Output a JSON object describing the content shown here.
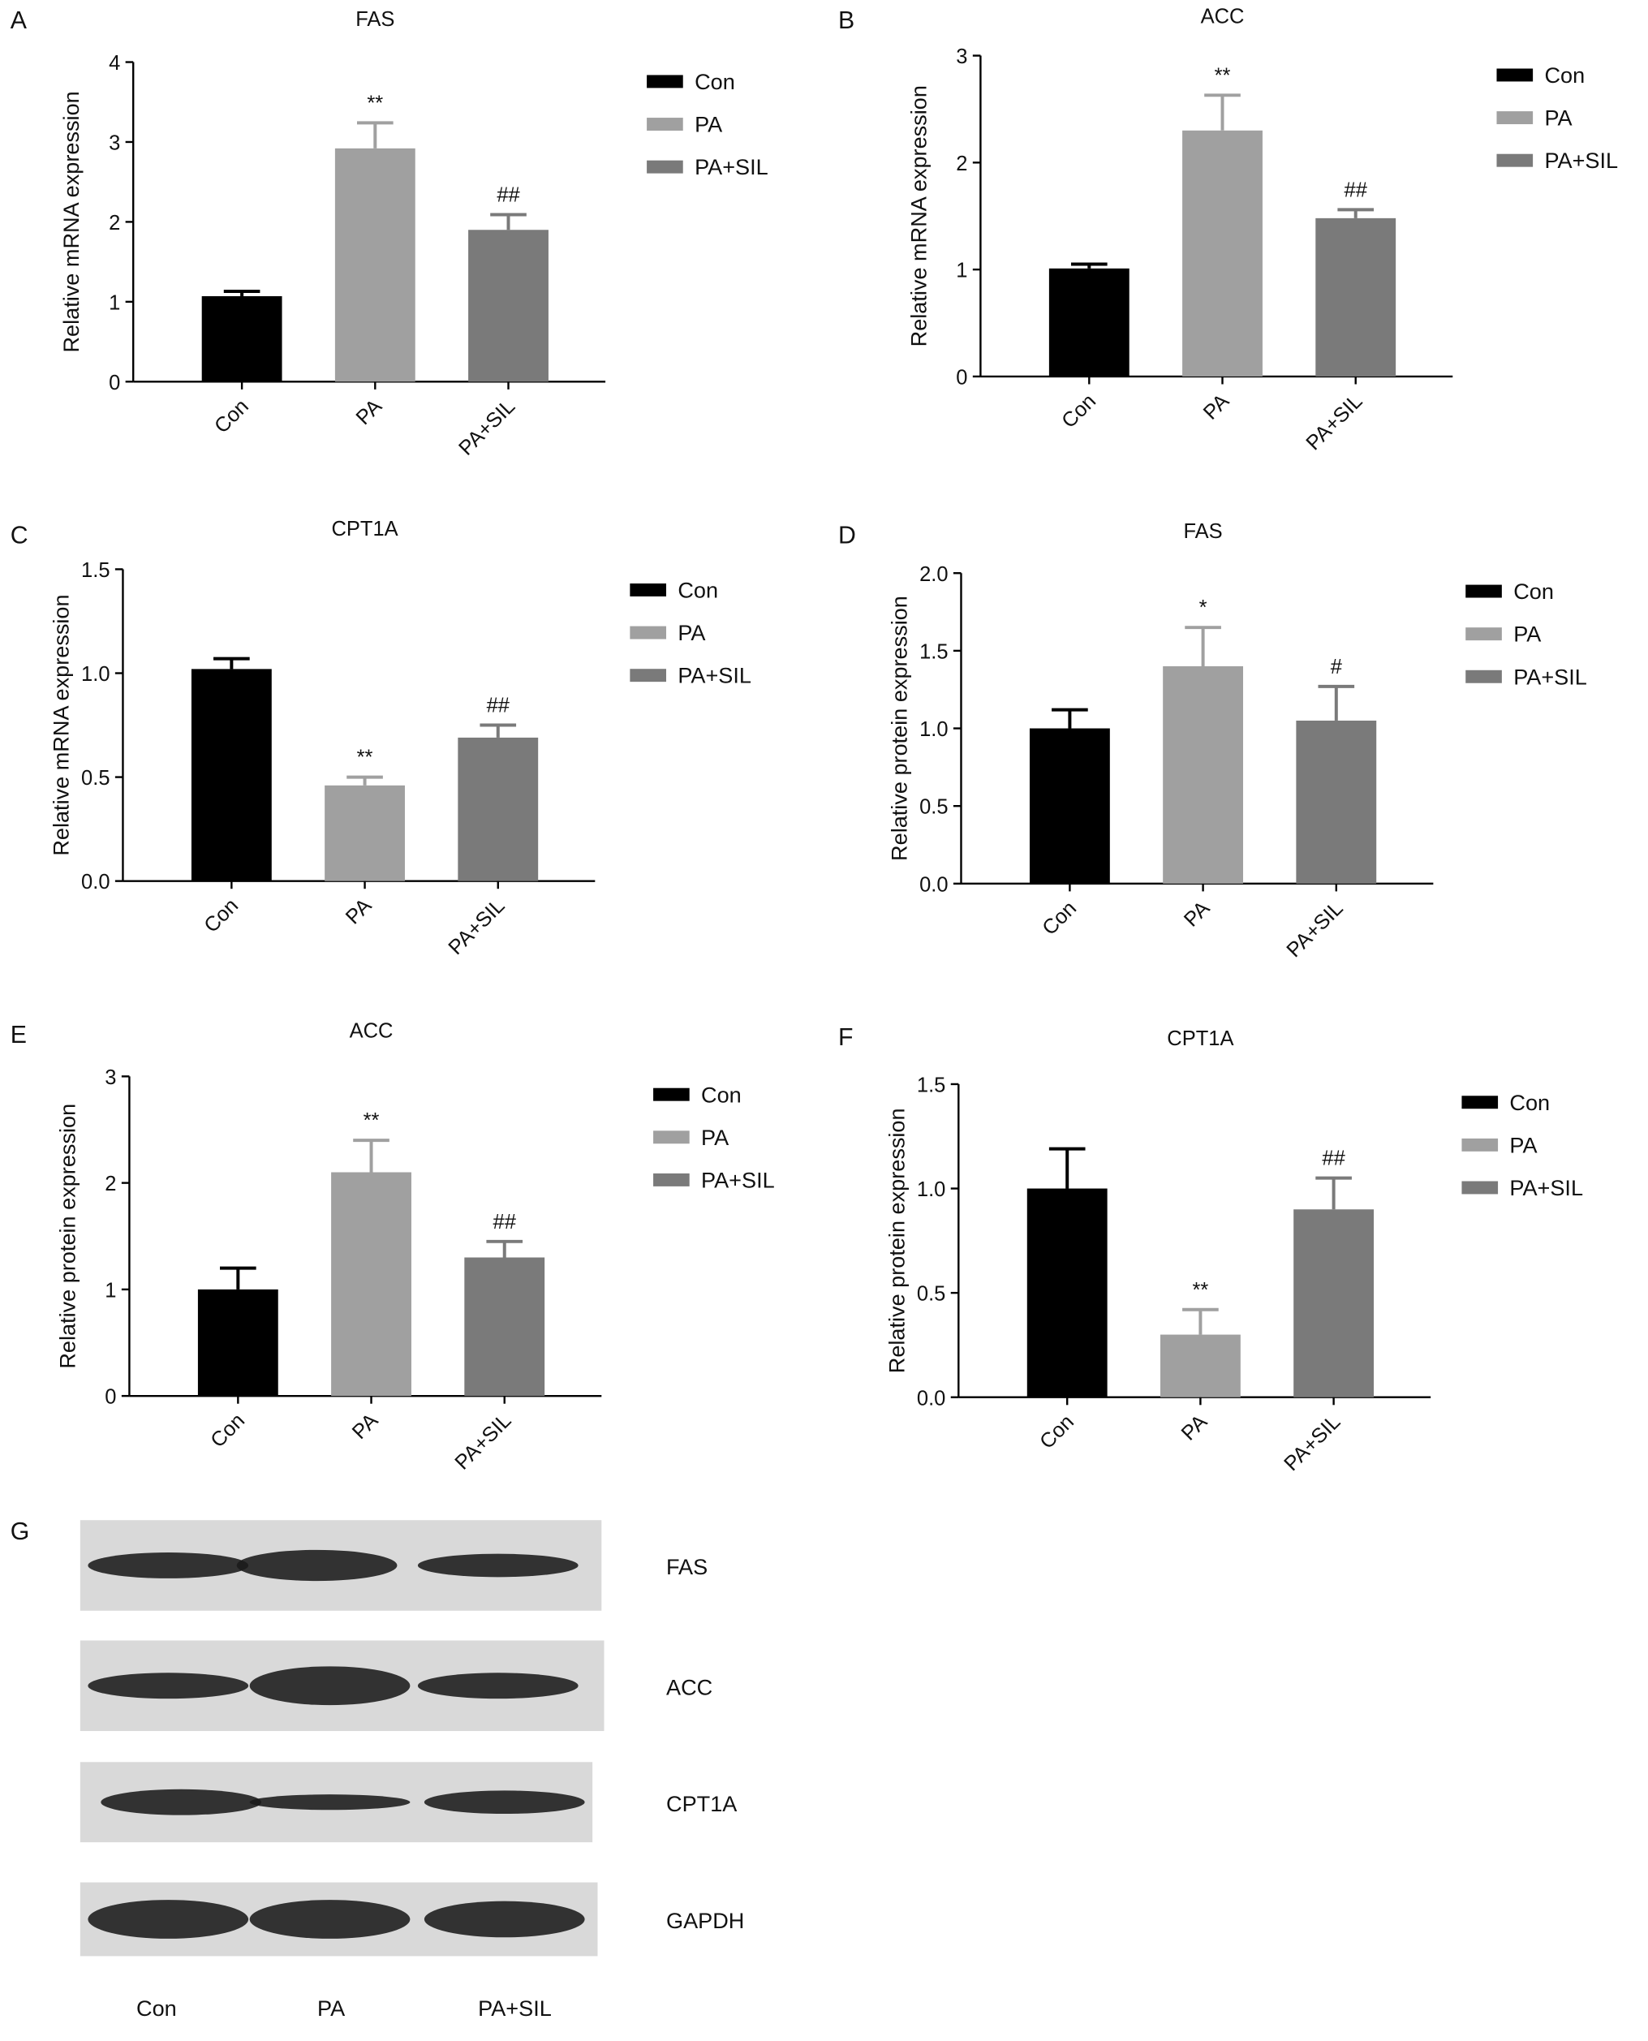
{
  "chart_data": [
    {
      "type": "bar",
      "panel": "A",
      "title": "FAS",
      "ylabel": "Relative mRNA expression",
      "categories": [
        "Con",
        "PA",
        "PA+SIL"
      ],
      "values": [
        1.07,
        2.92,
        1.9
      ],
      "errors": [
        0.06,
        0.32,
        0.19
      ],
      "annotations": [
        null,
        "**",
        "##"
      ],
      "colors": [
        "#000000",
        "#a0a0a0",
        "#7a7a7a"
      ],
      "ylim": [
        0,
        4
      ],
      "yticks": [
        0,
        1,
        2,
        3,
        4
      ]
    },
    {
      "type": "bar",
      "panel": "B",
      "title": "ACC",
      "ylabel": "Relative mRNA expression",
      "categories": [
        "Con",
        "PA",
        "PA+SIL"
      ],
      "values": [
        1.01,
        2.3,
        1.48
      ],
      "errors": [
        0.04,
        0.33,
        0.08
      ],
      "annotations": [
        null,
        "**",
        "##"
      ],
      "colors": [
        "#000000",
        "#a0a0a0",
        "#7a7a7a"
      ],
      "ylim": [
        0,
        3
      ],
      "yticks": [
        0,
        1,
        2,
        3
      ]
    },
    {
      "type": "bar",
      "panel": "C",
      "title": "CPT1A",
      "ylabel": "Relative mRNA expression",
      "categories": [
        "Con",
        "PA",
        "PA+SIL"
      ],
      "values": [
        1.02,
        0.46,
        0.69
      ],
      "errors": [
        0.05,
        0.04,
        0.06
      ],
      "annotations": [
        null,
        "**",
        "##"
      ],
      "colors": [
        "#000000",
        "#a0a0a0",
        "#7a7a7a"
      ],
      "ylim": [
        0,
        1.5
      ],
      "yticks": [
        {
          "value": 0,
          "label": "0.0"
        },
        0.5,
        {
          "value": 1,
          "label": "1.0"
        },
        1.5
      ]
    },
    {
      "type": "bar",
      "panel": "D",
      "title": "FAS",
      "ylabel": "Relative protein expression",
      "categories": [
        "Con",
        "PA",
        "PA+SIL"
      ],
      "values": [
        1.0,
        1.4,
        1.05
      ],
      "errors": [
        0.12,
        0.25,
        0.22
      ],
      "annotations": [
        null,
        "*",
        "#"
      ],
      "colors": [
        "#000000",
        "#a0a0a0",
        "#7a7a7a"
      ],
      "ylim": [
        0,
        2
      ],
      "yticks": [
        {
          "value": 0,
          "label": "0.0"
        },
        0.5,
        {
          "value": 1,
          "label": "1.0"
        },
        1.5,
        {
          "value": 2,
          "label": "2.0"
        }
      ]
    },
    {
      "type": "bar",
      "panel": "E",
      "title": "ACC",
      "ylabel": "Relative protein expression",
      "categories": [
        "Con",
        "PA",
        "PA+SIL"
      ],
      "values": [
        1.0,
        2.1,
        1.3
      ],
      "errors": [
        0.2,
        0.3,
        0.15
      ],
      "annotations": [
        null,
        "**",
        "##"
      ],
      "colors": [
        "#000000",
        "#a0a0a0",
        "#7a7a7a"
      ],
      "ylim": [
        0,
        3
      ],
      "yticks": [
        0,
        1,
        2,
        3
      ]
    },
    {
      "type": "bar",
      "panel": "F",
      "title": "CPT1A",
      "ylabel": "Relative protein expression",
      "categories": [
        "Con",
        "PA",
        "PA+SIL"
      ],
      "values": [
        1.0,
        0.3,
        0.9
      ],
      "errors": [
        0.19,
        0.12,
        0.15
      ],
      "annotations": [
        null,
        "**",
        "##"
      ],
      "colors": [
        "#000000",
        "#a0a0a0",
        "#7a7a7a"
      ],
      "ylim": [
        0,
        1.5
      ],
      "yticks": [
        {
          "value": 0,
          "label": "0.0"
        },
        0.5,
        {
          "value": 1,
          "label": "1.0"
        },
        1.5
      ]
    }
  ],
  "blot": {
    "panel": "G",
    "proteins": [
      "FAS",
      "ACC",
      "CPT1A",
      "GAPDH"
    ],
    "lanes": [
      "Con",
      "PA",
      "PA+SIL"
    ]
  }
}
